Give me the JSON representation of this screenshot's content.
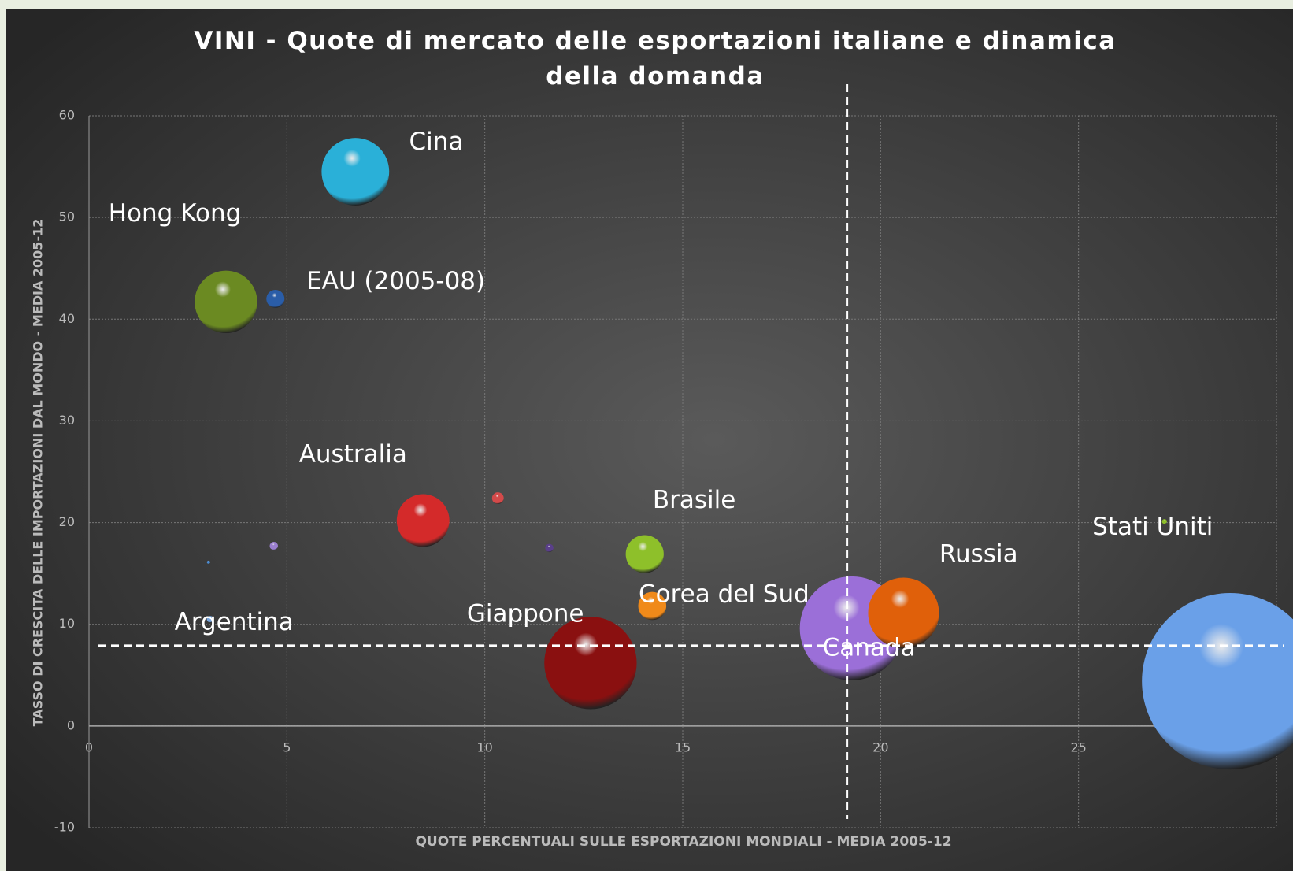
{
  "chart_data": {
    "type": "bubble",
    "title": "VINI - Quote di mercato delle esportazioni italiane e dinamica della domanda",
    "xlabel": "QUOTE PERCENTUALI SULLE ESPORTAZIONI MONDIALI - MEDIA 2005-12",
    "ylabel": "TASSO DI CRESCITA DELLE IMPORTAZIONI DAL MONDO - MEDIA 2005-12",
    "labels": [
      "Cina",
      "Hong Kong",
      "EAU (2005-08)",
      "Australia",
      null,
      null,
      null,
      null,
      "Argentina",
      "Brasile",
      "Corea del Sud",
      "Giappone",
      "Canada",
      "Russia",
      "Stati Uniti",
      null
    ],
    "x": [
      6.73,
      3.46,
      4.71,
      8.44,
      10.33,
      4.67,
      11.63,
      3.02,
      3.06,
      14.04,
      14.23,
      12.67,
      19.27,
      20.58,
      28.83,
      27.17
    ],
    "values": [
      54.5,
      41.7,
      42.0,
      20.2,
      22.4,
      17.7,
      17.5,
      16.1,
      10.5,
      16.9,
      11.8,
      6.2,
      9.6,
      11.1,
      4.4,
      20.1
    ],
    "sizes": [
      16.8,
      14.4,
      1.2,
      10.2,
      0.5,
      0.25,
      0.25,
      0.04,
      0.16,
      5.3,
      2.9,
      31.4,
      39.7,
      18.5,
      114.5,
      0.09
    ],
    "colors": [
      "#2ab0d8",
      "#6b8a22",
      "#2a5da8",
      "#d42a2a",
      "#d44a4a",
      "#9b7fd0",
      "#5a3f8a",
      "#4a8ad0",
      "#7aa8e0",
      "#8ec02a",
      "#f08a1a",
      "#8a1010",
      "#9b6fd8",
      "#e0600a",
      "#6aa0e8",
      "#8ec02a"
    ],
    "vline": 19.15,
    "hline": 7.9,
    "xlim": [
      0,
      30
    ],
    "xticks": [
      0,
      5,
      10,
      15,
      20,
      25,
      30
    ],
    "ylim": [
      -10,
      60
    ],
    "yticks": [
      -10,
      0,
      10,
      20,
      30,
      40,
      50,
      60
    ],
    "grid": true
  }
}
